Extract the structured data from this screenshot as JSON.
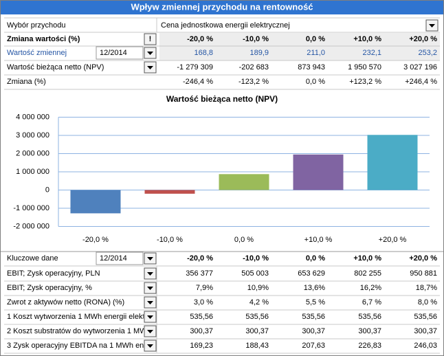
{
  "header": {
    "title": "Wpływ zmiennej przychodu na rentowność"
  },
  "selector": {
    "label": "Wybór przychodu",
    "value": "Cena jednostkowa energii elektrycznej"
  },
  "top_table": {
    "columns_label": "Zmiana wartości (%)",
    "button": "!",
    "columns": [
      "-20,0 %",
      "-10,0 %",
      "0,0 %",
      "+10,0 %",
      "+20,0 %"
    ],
    "rows": [
      {
        "label": "Wartość zmiennej",
        "period": "12/2014",
        "cells": [
          "168,8",
          "189,9",
          "211,0",
          "232,1",
          "253,2"
        ]
      },
      {
        "label": "Wartość bieżąca netto (NPV)",
        "cells": [
          "-1 279 309",
          "-202 683",
          "873 943",
          "1 950 570",
          "3 027 196"
        ]
      },
      {
        "label": "Zmiana (%)",
        "cells": [
          "-246,4 %",
          "-123,2 %",
          "0,0 %",
          "+123,2 %",
          "+246,4 %"
        ]
      }
    ]
  },
  "chart": {
    "type": "bar",
    "title": "Wartość bieżąca netto (NPV)",
    "categories": [
      "-20,0 %",
      "-10,0 %",
      "0,0 %",
      "+10,0 %",
      "+20,0 %"
    ],
    "values": [
      -1279309,
      -202683,
      873943,
      1950570,
      3027196
    ],
    "colors": [
      "#4f81bd",
      "#c0504d",
      "#9bbb59",
      "#8064a2",
      "#4bacc6"
    ],
    "ylim": [
      -2000000,
      4000000
    ],
    "yticks": [
      {
        "value": -2000000,
        "label": "-2 000 000"
      },
      {
        "value": -1000000,
        "label": "-1 000 000"
      },
      0,
      {
        "value": 1000000,
        "label": "1 000 000"
      },
      {
        "value": 2000000,
        "label": "2 000 000"
      },
      {
        "value": 3000000,
        "label": "3 000 000"
      },
      {
        "value": 4000000,
        "label": "4 000 000"
      }
    ],
    "grid": true
  },
  "key_table": {
    "label": "Kluczowe dane",
    "period": "12/2014",
    "columns": [
      "-20,0 %",
      "-10,0 %",
      "0,0 %",
      "+10,0 %",
      "+20,0 %"
    ],
    "rows": [
      {
        "label": "EBIT; Zysk operacyjny, PLN",
        "cells": [
          "356 377",
          "505 003",
          "653 629",
          "802 255",
          "950 881"
        ]
      },
      {
        "label": "EBIT; Zysk operacyjny, %",
        "cells": [
          "7,9%",
          "10,9%",
          "13,6%",
          "16,2%",
          "18,7%"
        ]
      },
      {
        "label": "Zwrot z aktywów netto (RONA) (%)",
        "cells": [
          "3,0 %",
          "4,2 %",
          "5,5 %",
          "6,7 %",
          "8,0 %"
        ]
      },
      {
        "label": "1 Koszt wytworzenia 1 MWh energii elektr",
        "cells": [
          "535,56",
          "535,56",
          "535,56",
          "535,56",
          "535,56"
        ]
      },
      {
        "label": "2 Koszt substratów do wytworzenia 1 MW",
        "cells": [
          "300,37",
          "300,37",
          "300,37",
          "300,37",
          "300,37"
        ]
      },
      {
        "label": "3 Zysk operacyjny EBITDA na 1 MWh ene",
        "cells": [
          "169,23",
          "188,43",
          "207,63",
          "226,83",
          "246,03"
        ]
      }
    ]
  }
}
